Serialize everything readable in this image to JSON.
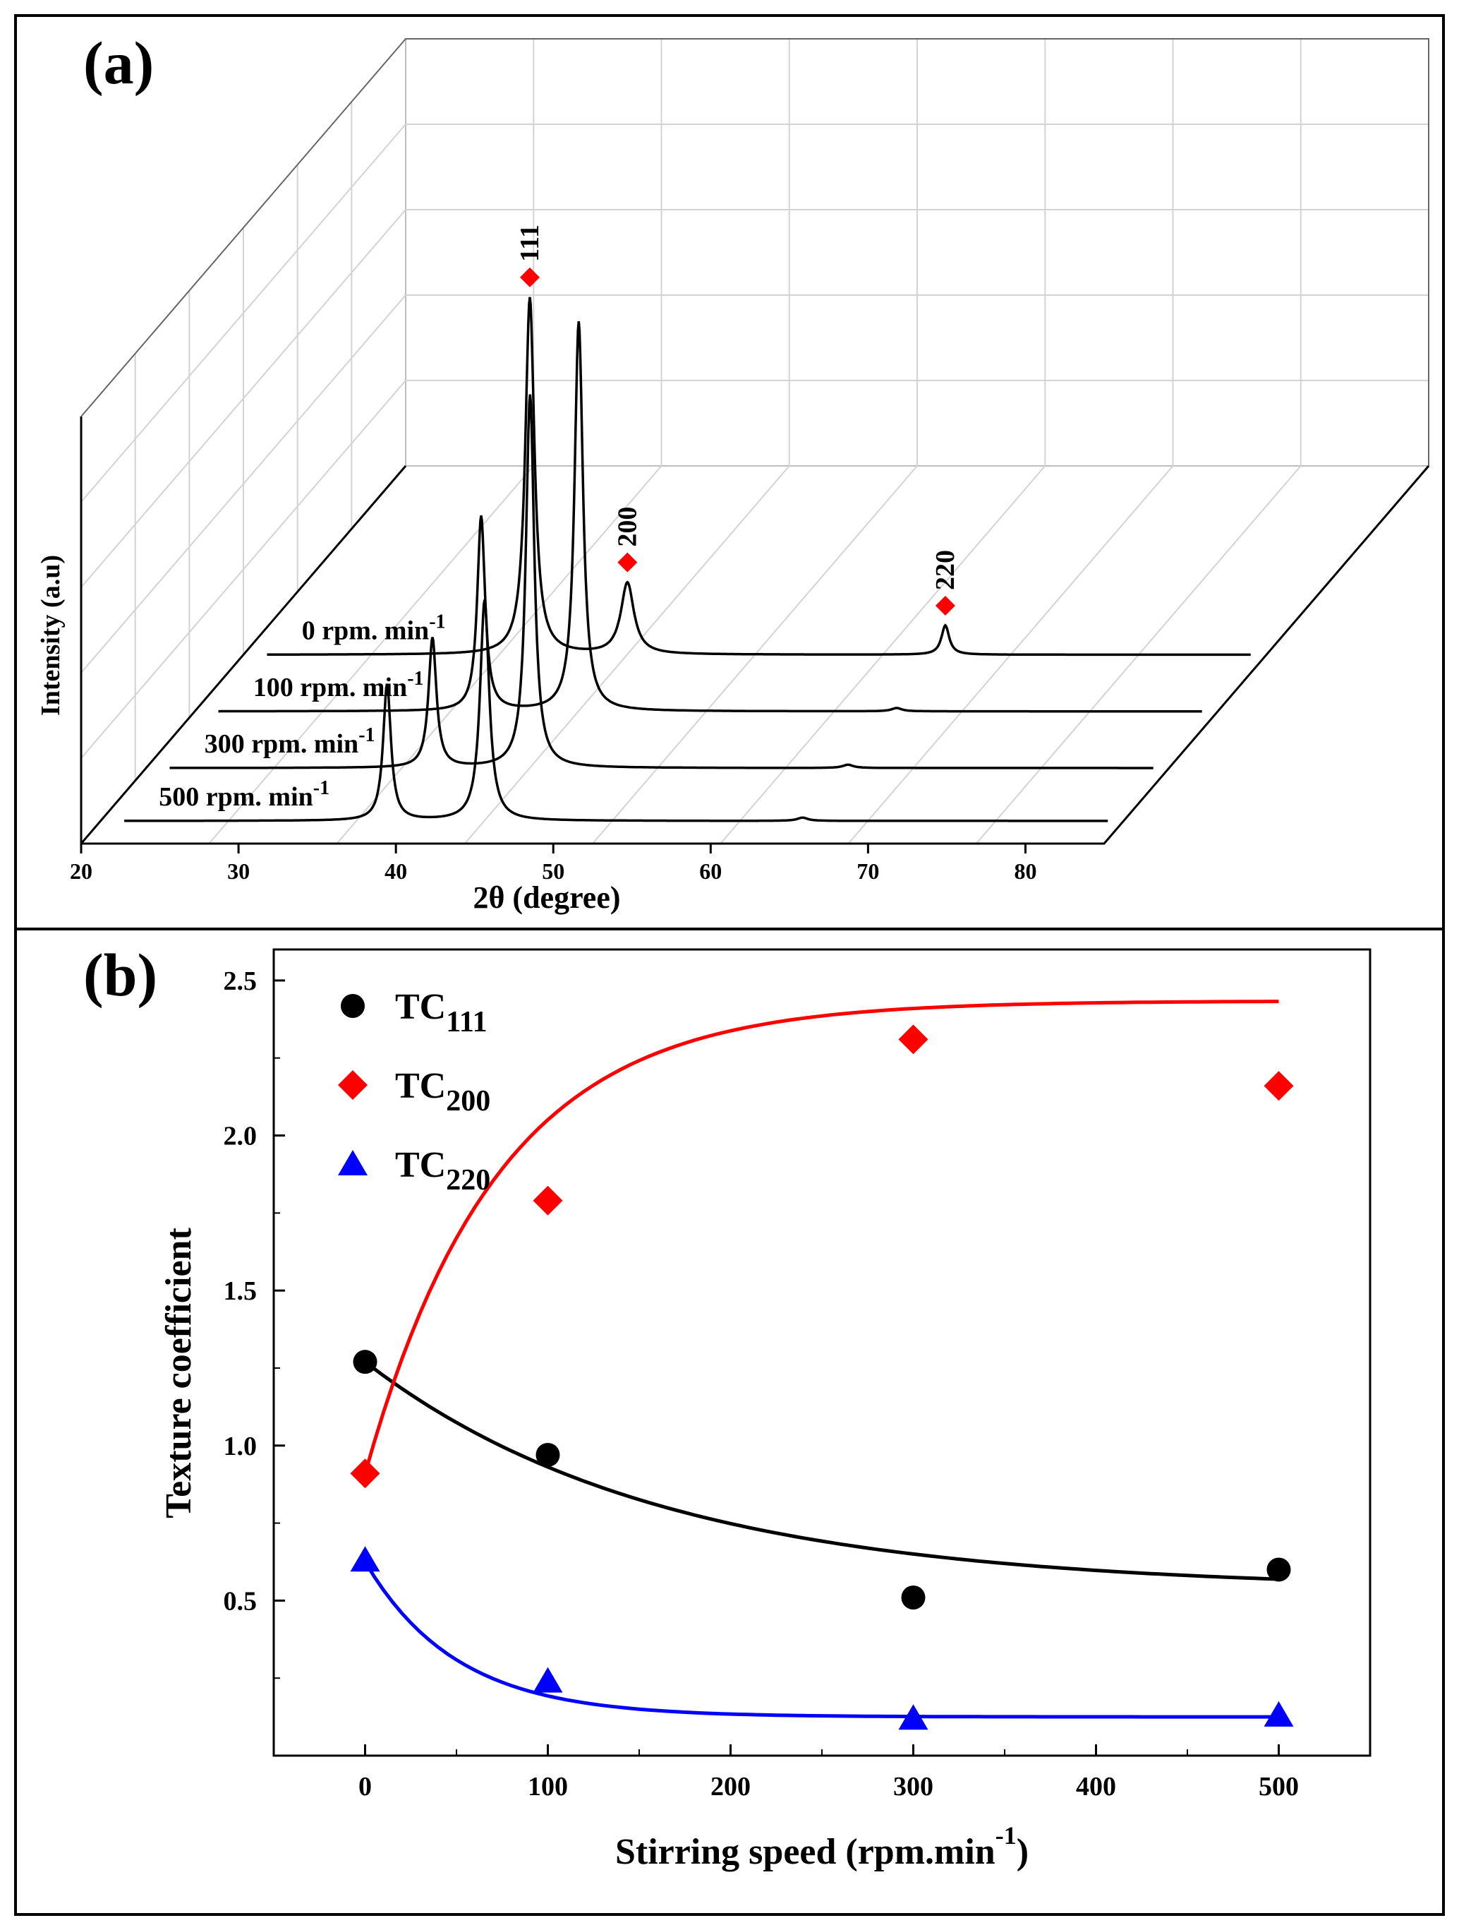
{
  "chart_data": [
    {
      "panel_label": "(a)",
      "type": "line",
      "subtype": "stacked-3d-xrd",
      "xlabel": "2θ (degree)",
      "ylabel": "Intensity (a.u)",
      "xlim": [
        20,
        85
      ],
      "x_ticks": [
        "20",
        "30",
        "40",
        "50",
        "60",
        "70",
        "80"
      ],
      "series": [
        {
          "name": "500 rpm. min",
          "label_base": "500 rpm. min",
          "label_sup": "-1",
          "peaks": [
            {
              "x": 38.2,
              "height": 0.42,
              "width": 0.3
            },
            {
              "x": 44.4,
              "height": 0.68,
              "width": 0.35
            },
            {
              "x": 64.6,
              "height": 0.01,
              "width": 0.4
            }
          ]
        },
        {
          "name": "300 rpm. min",
          "label_base": "300 rpm. min",
          "label_sup": "-1",
          "peaks": [
            {
              "x": 38.2,
              "height": 0.4,
              "width": 0.3
            },
            {
              "x": 44.4,
              "height": 1.15,
              "width": 0.32
            },
            {
              "x": 64.6,
              "height": 0.01,
              "width": 0.4
            }
          ]
        },
        {
          "name": "100 rpm. min",
          "label_base": "100 rpm. min",
          "label_sup": "-1",
          "peaks": [
            {
              "x": 38.2,
              "height": 0.6,
              "width": 0.3
            },
            {
              "x": 44.4,
              "height": 1.2,
              "width": 0.32
            },
            {
              "x": 64.6,
              "height": 0.01,
              "width": 0.4
            }
          ]
        },
        {
          "name": "0 rpm. min",
          "label_base": "0 rpm. min",
          "label_sup": "-1",
          "peaks": [
            {
              "x": 38.2,
              "height": 1.1,
              "width": 0.35
            },
            {
              "x": 44.4,
              "height": 0.22,
              "width": 0.5
            },
            {
              "x": 64.6,
              "height": 0.09,
              "width": 0.3
            }
          ]
        }
      ],
      "peak_markers": [
        {
          "label": "111",
          "x": 38.2
        },
        {
          "label": "200",
          "x": 44.4
        },
        {
          "label": "220",
          "x": 64.6
        }
      ],
      "marker_color": "#ff0000",
      "line_color": "#000000"
    },
    {
      "panel_label": "(b)",
      "type": "scatter",
      "xlabel": "Stirring speed (rpm.min",
      "xlabel_sup": "-1",
      "xlabel_close": ")",
      "ylabel": "Texture coefficient",
      "xlim": [
        -50,
        550
      ],
      "ylim": [
        0,
        2.6
      ],
      "x_ticks": [
        0,
        100,
        200,
        300,
        400,
        500
      ],
      "x_tick_labels": [
        "0",
        "100",
        "200",
        "300",
        "400",
        "500"
      ],
      "y_ticks": [
        0.5,
        1.0,
        1.5,
        2.0,
        2.5
      ],
      "y_tick_labels": [
        "0.5",
        "1.0",
        "1.5",
        "2.0",
        "2.5"
      ],
      "series": [
        {
          "name": "TC111",
          "legend_base": "TC",
          "legend_sub": "111",
          "marker": "circle",
          "color": "#000000",
          "x": [
            0,
            100,
            300,
            500
          ],
          "y": [
            1.27,
            0.97,
            0.51,
            0.6
          ],
          "fit": {
            "a": 0.536,
            "b": 0.734,
            "k": 0.0062
          }
        },
        {
          "name": "TC200",
          "legend_base": "TC",
          "legend_sub": "200",
          "marker": "diamond",
          "color": "#ff0000",
          "x": [
            0,
            100,
            300,
            500
          ],
          "y": [
            0.91,
            1.79,
            2.31,
            2.16
          ],
          "fit": {
            "a": 2.434,
            "b": -1.524,
            "k": 0.0138
          }
        },
        {
          "name": "TC220",
          "legend_base": "TC",
          "legend_sub": "220",
          "marker": "triangle",
          "color": "#0000ff",
          "x": [
            0,
            100,
            300,
            500
          ],
          "y": [
            0.63,
            0.24,
            0.12,
            0.13
          ],
          "fit": {
            "a": 0.125,
            "b": 0.5,
            "k": 0.02
          }
        }
      ]
    }
  ]
}
